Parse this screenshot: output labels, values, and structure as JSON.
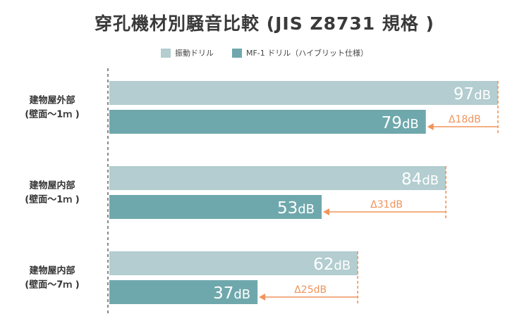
{
  "chart_data": {
    "type": "bar",
    "orientation": "horizontal",
    "title": "穿孔機材別騒音比較 (JIS Z8731 規格 )",
    "categories": [
      [
        "建物屋外部",
        "(壁面〜1ｍ )"
      ],
      [
        "建物屋内部",
        "(壁面〜1ｍ )"
      ],
      [
        "建物屋内部",
        "(壁面〜7ｍ )"
      ]
    ],
    "unit": "dB",
    "series": [
      {
        "name": "振動ドリル",
        "color": "#b3cdd0",
        "values": [
          97,
          84,
          62
        ]
      },
      {
        "name": "MF-1 ドリル（ハイブリット仕様）",
        "color": "#6fa8ac",
        "values": [
          79,
          53,
          37
        ]
      }
    ],
    "deltas": [
      {
        "value": 18,
        "label": "Δ18dB"
      },
      {
        "value": 31,
        "label": "Δ31dB"
      },
      {
        "value": 25,
        "label": "Δ25dB"
      }
    ],
    "xlim": [
      0,
      100
    ],
    "grid": false,
    "legend_position": "top-center"
  },
  "colors": {
    "annotation": "#f0945c",
    "axis": "#888888",
    "text": "#333333"
  }
}
